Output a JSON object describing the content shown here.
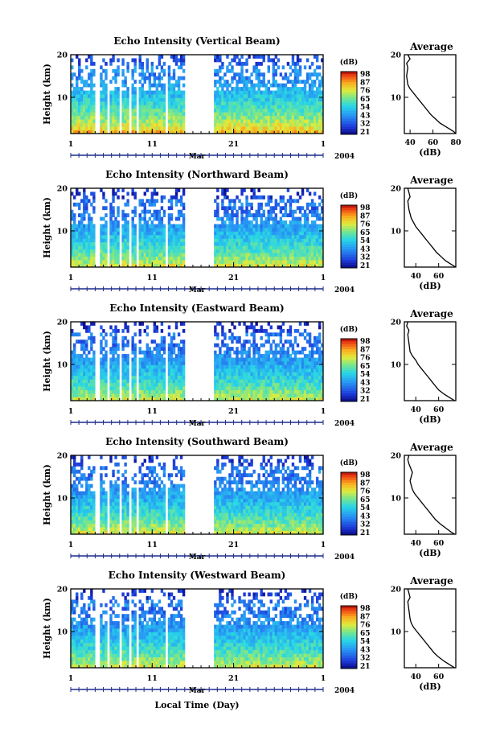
{
  "figure": {
    "bottom_xlabel": "Local Time (Day)",
    "month_label": "Mar",
    "year_label": "2004"
  },
  "chart_data": [
    {
      "type": "heatmap",
      "title": "Echo Intensity (Vertical Beam)",
      "ylabel": "Height (km)",
      "xlim": [
        1,
        32
      ],
      "ylim": [
        1.5,
        20
      ],
      "x_ticks": [
        "1",
        "11",
        "21",
        "1"
      ],
      "y_ticks": [
        "20",
        "10"
      ],
      "x_tick_values": [
        1,
        11,
        21,
        32
      ],
      "y_tick_values": [
        20,
        10
      ],
      "colorbar": {
        "unit": "(dB)",
        "labels": [
          "98",
          "87",
          "76",
          "65",
          "54",
          "43",
          "32",
          "21"
        ],
        "range": [
          21,
          98
        ]
      },
      "surface_db": 85,
      "top_db": 30,
      "data_gaps_days": [
        [
          4.1,
          4.5
        ],
        [
          5.6,
          5.9
        ],
        [
          6.9,
          7.2
        ],
        [
          8.2,
          8.5
        ],
        [
          9.1,
          9.3
        ],
        [
          12.6,
          12.9
        ],
        [
          15.0,
          18.5
        ]
      ],
      "profile": {
        "title": "Average",
        "xlabel": "(dB)",
        "x_ticks": [
          "40",
          "60",
          "80"
        ],
        "x_tick_values": [
          40,
          60,
          80
        ],
        "xlim": [
          35,
          80
        ],
        "y_ticks": [
          "20",
          "10"
        ],
        "y_tick_values": [
          20,
          10
        ],
        "ylim": [
          1.5,
          20
        ],
        "height_km": [
          1.5,
          2,
          3,
          4,
          5,
          6,
          7,
          8,
          9,
          10,
          11,
          12,
          13,
          15,
          17,
          18,
          19,
          20
        ],
        "db": [
          80,
          78,
          72,
          66,
          62,
          58,
          55,
          52,
          49,
          46,
          43,
          40,
          38,
          37,
          38,
          37,
          40,
          38
        ]
      }
    },
    {
      "type": "heatmap",
      "title": "Echo Intensity (Northward Beam)",
      "ylabel": "Height (km)",
      "xlim": [
        1,
        32
      ],
      "ylim": [
        1.5,
        20
      ],
      "x_ticks": [
        "1",
        "11",
        "21",
        "1"
      ],
      "y_ticks": [
        "20",
        "10"
      ],
      "x_tick_values": [
        1,
        11,
        21,
        32
      ],
      "y_tick_values": [
        20,
        10
      ],
      "colorbar": {
        "unit": "(dB)",
        "labels": [
          "98",
          "87",
          "76",
          "65",
          "54",
          "43",
          "32",
          "21"
        ],
        "range": [
          21,
          98
        ]
      },
      "surface_db": 78,
      "top_db": 27,
      "data_gaps_days": [
        [
          4.1,
          4.5
        ],
        [
          5.6,
          5.9
        ],
        [
          6.9,
          7.2
        ],
        [
          8.2,
          8.5
        ],
        [
          9.1,
          9.3
        ],
        [
          12.6,
          12.9
        ],
        [
          15.0,
          18.5
        ]
      ],
      "profile": {
        "title": "Average",
        "xlabel": "(dB)",
        "x_ticks": [
          "40",
          "60"
        ],
        "x_tick_values": [
          40,
          60
        ],
        "xlim": [
          30,
          75
        ],
        "y_ticks": [
          "20",
          "10"
        ],
        "y_tick_values": [
          20,
          10
        ],
        "ylim": [
          1.5,
          20
        ],
        "height_km": [
          1.5,
          2,
          3,
          4,
          5,
          6,
          7,
          8,
          9,
          10,
          11,
          12,
          13,
          15,
          17,
          18,
          19,
          20
        ],
        "db": [
          75,
          72,
          66,
          62,
          58,
          55,
          52,
          49,
          46,
          43,
          40,
          38,
          36,
          34,
          33,
          35,
          34,
          33
        ]
      }
    },
    {
      "type": "heatmap",
      "title": "Echo Intensity (Eastward Beam)",
      "ylabel": "Height (km)",
      "xlim": [
        1,
        32
      ],
      "ylim": [
        1.5,
        20
      ],
      "x_ticks": [
        "1",
        "11",
        "21",
        "1"
      ],
      "y_ticks": [
        "20",
        "10"
      ],
      "x_tick_values": [
        1,
        11,
        21,
        32
      ],
      "y_tick_values": [
        20,
        10
      ],
      "colorbar": {
        "unit": "(dB)",
        "labels": [
          "98",
          "87",
          "76",
          "65",
          "54",
          "43",
          "32",
          "21"
        ],
        "range": [
          21,
          98
        ]
      },
      "surface_db": 76,
      "top_db": 27,
      "data_gaps_days": [
        [
          4.1,
          4.5
        ],
        [
          5.6,
          5.9
        ],
        [
          6.9,
          7.2
        ],
        [
          8.2,
          8.5
        ],
        [
          9.1,
          9.3
        ],
        [
          12.6,
          12.9
        ],
        [
          15.0,
          18.5
        ]
      ],
      "profile": {
        "title": "Average",
        "xlabel": "(dB)",
        "x_ticks": [
          "40",
          "60"
        ],
        "x_tick_values": [
          40,
          60
        ],
        "xlim": [
          30,
          75
        ],
        "y_ticks": [
          "20",
          "10"
        ],
        "y_tick_values": [
          20,
          10
        ],
        "ylim": [
          1.5,
          20
        ],
        "height_km": [
          1.5,
          2,
          3,
          4,
          5,
          6,
          7,
          8,
          9,
          10,
          11,
          12,
          13,
          15,
          17,
          18,
          19,
          20
        ],
        "db": [
          74,
          71,
          65,
          60,
          57,
          54,
          51,
          48,
          45,
          42,
          40,
          37,
          35,
          34,
          33,
          34,
          32,
          33
        ]
      }
    },
    {
      "type": "heatmap",
      "title": "Echo Intensity (Southward Beam)",
      "ylabel": "Height (km)",
      "xlim": [
        1,
        32
      ],
      "ylim": [
        1.5,
        20
      ],
      "x_ticks": [
        "1",
        "11",
        "21",
        "1"
      ],
      "y_ticks": [
        "20",
        "10"
      ],
      "x_tick_values": [
        1,
        11,
        21,
        32
      ],
      "y_tick_values": [
        20,
        10
      ],
      "colorbar": {
        "unit": "(dB)",
        "labels": [
          "98",
          "87",
          "76",
          "65",
          "54",
          "43",
          "32",
          "21"
        ],
        "range": [
          21,
          98
        ]
      },
      "surface_db": 77,
      "top_db": 28,
      "data_gaps_days": [
        [
          4.1,
          4.5
        ],
        [
          5.6,
          5.9
        ],
        [
          6.9,
          7.2
        ],
        [
          8.2,
          8.5
        ],
        [
          9.1,
          9.3
        ],
        [
          12.6,
          12.9
        ],
        [
          15.0,
          18.5
        ]
      ],
      "profile": {
        "title": "Average",
        "xlabel": "(dB)",
        "x_ticks": [
          "40",
          "60"
        ],
        "x_tick_values": [
          40,
          60
        ],
        "xlim": [
          30,
          75
        ],
        "y_ticks": [
          "20",
          "10"
        ],
        "y_tick_values": [
          20,
          10
        ],
        "ylim": [
          1.5,
          20
        ],
        "height_km": [
          1.5,
          2,
          3,
          4,
          5,
          6,
          7,
          8,
          9,
          10,
          11,
          12,
          13,
          14,
          16,
          18,
          19,
          20
        ],
        "db": [
          74,
          71,
          66,
          61,
          57,
          54,
          51,
          48,
          45,
          42,
          39,
          37,
          36,
          35,
          37,
          34,
          33,
          34
        ]
      }
    },
    {
      "type": "heatmap",
      "title": "Echo Intensity (Westward Beam)",
      "ylabel": "Height (km)",
      "xlim": [
        1,
        32
      ],
      "ylim": [
        1.5,
        20
      ],
      "x_ticks": [
        "1",
        "11",
        "21",
        "1"
      ],
      "y_ticks": [
        "20",
        "10"
      ],
      "x_tick_values": [
        1,
        11,
        21,
        32
      ],
      "y_tick_values": [
        20,
        10
      ],
      "colorbar": {
        "unit": "(dB)",
        "labels": [
          "98",
          "87",
          "76",
          "65",
          "54",
          "43",
          "32",
          "21"
        ],
        "range": [
          21,
          98
        ]
      },
      "surface_db": 76,
      "top_db": 28,
      "data_gaps_days": [
        [
          4.1,
          4.5
        ],
        [
          5.6,
          5.9
        ],
        [
          6.9,
          7.2
        ],
        [
          8.2,
          8.5
        ],
        [
          9.1,
          9.3
        ],
        [
          12.6,
          12.9
        ],
        [
          15.0,
          18.5
        ]
      ],
      "profile": {
        "title": "Average",
        "xlabel": "(dB)",
        "x_ticks": [
          "40",
          "60"
        ],
        "x_tick_values": [
          40,
          60
        ],
        "xlim": [
          30,
          75
        ],
        "y_ticks": [
          "20",
          "10"
        ],
        "y_tick_values": [
          20,
          10
        ],
        "ylim": [
          1.5,
          20
        ],
        "height_km": [
          1.5,
          2,
          3,
          4,
          5,
          6,
          7,
          8,
          9,
          10,
          11,
          12,
          13,
          15,
          17,
          18,
          19,
          20
        ],
        "db": [
          74,
          71,
          65,
          60,
          56,
          53,
          50,
          47,
          44,
          41,
          38,
          36,
          35,
          34,
          33,
          35,
          34,
          33
        ]
      }
    }
  ]
}
